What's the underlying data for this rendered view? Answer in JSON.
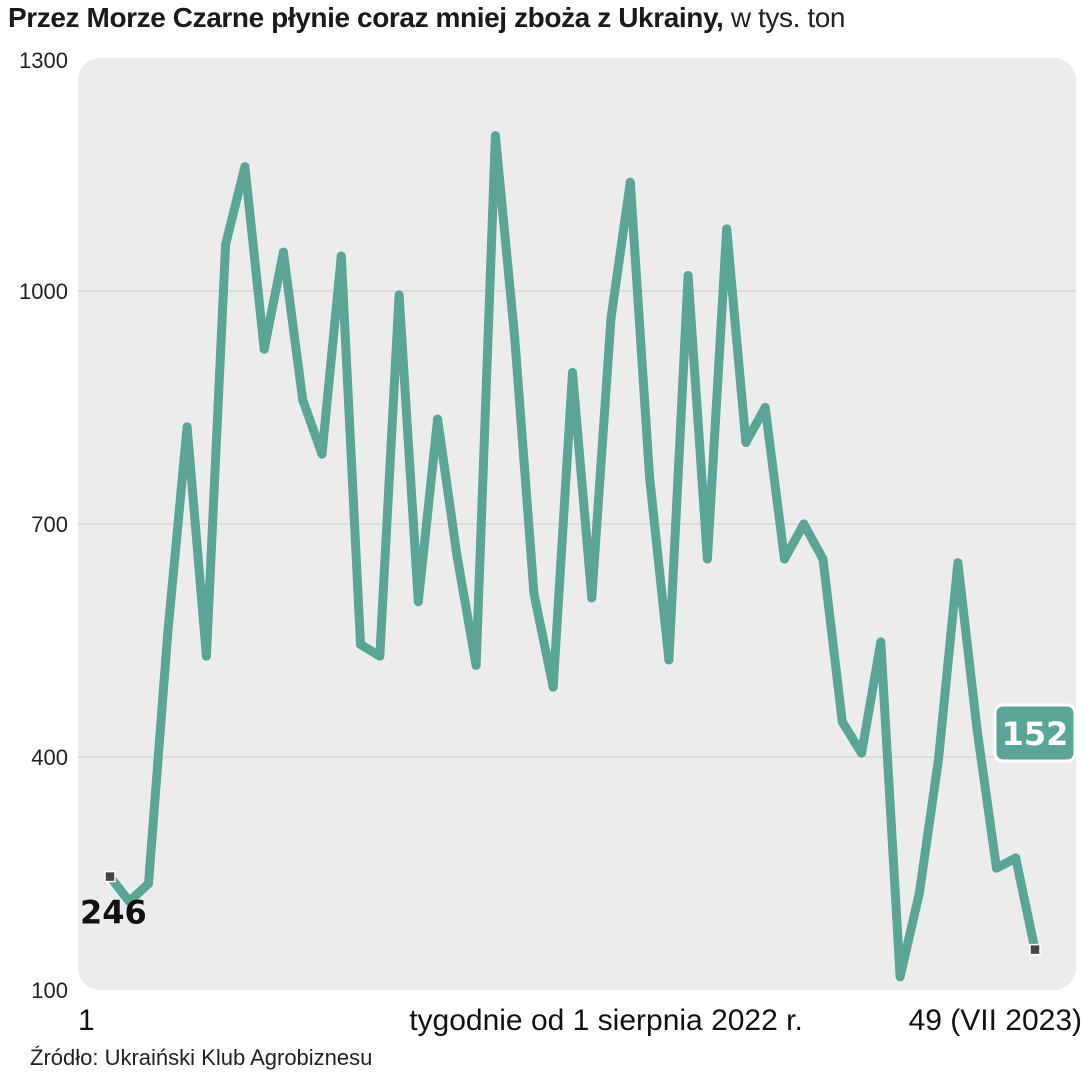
{
  "title": {
    "main": "Przez Morze Czarne płynie coraz mniej zboża z Ukrainy,",
    "unit": "w tys. ton"
  },
  "source": "Źródło: Ukraiński Klub Agrobiznesu",
  "colors": {
    "line": "#5ba596",
    "background": "#ececec",
    "grid": "#d6d6d6",
    "marker": "#444444",
    "badge_text": "#ffffff"
  },
  "chart_data": {
    "type": "line",
    "title": "Przez Morze Czarne płynie coraz mniej zboża z Ukrainy, w tys. ton",
    "xlabel": "tygodnie od 1 sierpnia 2022 r.",
    "x_start_label": "1",
    "x_end_label": "49 (VII 2023)",
    "ylim": [
      100,
      1300
    ],
    "yticks": [
      100,
      400,
      700,
      1000,
      1300
    ],
    "grid": true,
    "first_label": "246",
    "last_label": "152",
    "x": [
      1,
      2,
      3,
      4,
      5,
      6,
      7,
      8,
      9,
      10,
      11,
      12,
      13,
      14,
      15,
      16,
      17,
      18,
      19,
      20,
      21,
      22,
      23,
      24,
      25,
      26,
      27,
      28,
      29,
      30,
      31,
      32,
      33,
      34,
      35,
      36,
      37,
      38,
      39,
      40,
      41,
      42,
      43,
      44,
      45,
      46,
      47,
      48,
      49
    ],
    "values": [
      246,
      214,
      237,
      560,
      825,
      530,
      1060,
      1160,
      925,
      1050,
      860,
      790,
      1045,
      545,
      530,
      995,
      600,
      835,
      660,
      518,
      1200,
      940,
      610,
      490,
      895,
      605,
      965,
      1140,
      760,
      525,
      1020,
      655,
      1080,
      805,
      850,
      655,
      700,
      655,
      445,
      405,
      548,
      117,
      225,
      398,
      650,
      434,
      257,
      270,
      152
    ]
  }
}
